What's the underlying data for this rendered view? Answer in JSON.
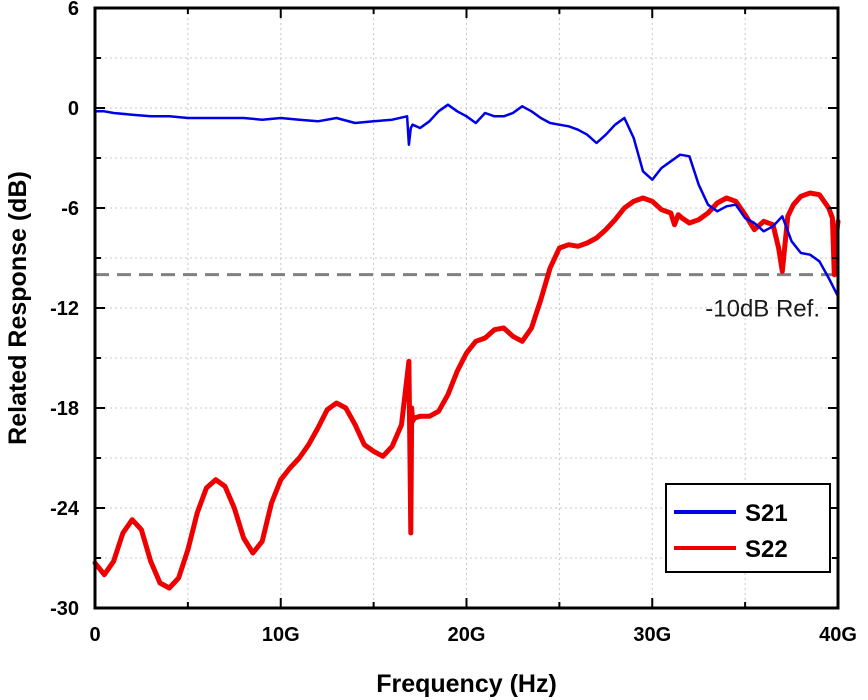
{
  "chart_data": {
    "type": "line",
    "title": "",
    "xlabel": "Frequency (Hz)",
    "ylabel": "Related Response (dB)",
    "xlim": [
      0,
      40
    ],
    "ylim": [
      -30,
      6
    ],
    "x_ticks": [
      {
        "value": 0,
        "label": "0"
      },
      {
        "value": 10,
        "label": "10G"
      },
      {
        "value": 20,
        "label": "20G"
      },
      {
        "value": 30,
        "label": "30G"
      },
      {
        "value": 40,
        "label": "40G"
      }
    ],
    "y_ticks": [
      {
        "value": 6,
        "label": "6"
      },
      {
        "value": 0,
        "label": "0"
      },
      {
        "value": -6,
        "label": "-6"
      },
      {
        "value": -12,
        "label": "-12"
      },
      {
        "value": -18,
        "label": "-18"
      },
      {
        "value": -24,
        "label": "-24"
      },
      {
        "value": -30,
        "label": "-30"
      }
    ],
    "grid": true,
    "reference_line": {
      "value": -10,
      "label": "-10dB Ref.",
      "color": "#808080"
    },
    "legend_position": "bottom-right",
    "series": [
      {
        "name": "S21",
        "color": "#0000e6",
        "x": [
          0,
          0.5,
          1,
          2,
          3,
          4,
          5,
          6,
          7,
          8,
          9,
          10,
          11,
          12,
          13,
          14,
          15,
          16,
          16.8,
          16.9,
          17.0,
          17.1,
          17.5,
          18,
          18.5,
          19,
          19.5,
          20,
          20.5,
          21,
          21.5,
          22,
          22.5,
          23,
          23.5,
          24,
          24.5,
          25,
          25.5,
          26,
          26.5,
          27,
          27.5,
          28,
          28.5,
          29,
          29.5,
          30,
          30.5,
          31,
          31.5,
          32,
          32.5,
          33,
          33.5,
          34,
          34.5,
          35,
          35.5,
          36,
          36.5,
          37,
          37.5,
          38,
          38.5,
          39,
          39.5,
          40
        ],
        "values": [
          -0.2,
          -0.2,
          -0.3,
          -0.4,
          -0.5,
          -0.5,
          -0.6,
          -0.6,
          -0.6,
          -0.6,
          -0.7,
          -0.6,
          -0.7,
          -0.8,
          -0.6,
          -0.9,
          -0.8,
          -0.7,
          -0.5,
          -2.2,
          -1.2,
          -1.0,
          -1.2,
          -0.8,
          -0.2,
          0.2,
          -0.2,
          -0.5,
          -0.9,
          -0.3,
          -0.5,
          -0.5,
          -0.3,
          0.1,
          -0.2,
          -0.6,
          -0.9,
          -1.0,
          -1.1,
          -1.3,
          -1.6,
          -2.1,
          -1.6,
          -1.0,
          -0.6,
          -1.8,
          -3.8,
          -4.3,
          -3.6,
          -3.2,
          -2.8,
          -2.9,
          -4.6,
          -5.8,
          -6.2,
          -5.9,
          -5.8,
          -6.6,
          -6.9,
          -7.4,
          -7.1,
          -6.5,
          -8.0,
          -8.7,
          -8.8,
          -9.2,
          -10.2,
          -11.3
        ]
      },
      {
        "name": "S22",
        "color": "#ee0000",
        "x": [
          0,
          0.5,
          1,
          1.5,
          2,
          2.5,
          3,
          3.5,
          4,
          4.5,
          5,
          5.5,
          6,
          6.5,
          7,
          7.5,
          8,
          8.5,
          9,
          9.5,
          10,
          10.5,
          11,
          11.5,
          12,
          12.5,
          13,
          13.5,
          14,
          14.5,
          15,
          15.5,
          16,
          16.5,
          16.9,
          17.0,
          17.05,
          17.1,
          17.2,
          17.5,
          18,
          18.5,
          19,
          19.5,
          20,
          20.5,
          21,
          21.5,
          22,
          22.5,
          23,
          23.5,
          24,
          24.5,
          25,
          25.5,
          26,
          26.5,
          27,
          27.5,
          28,
          28.5,
          29,
          29.5,
          30,
          30.5,
          31,
          31.2,
          31.4,
          31.6,
          32,
          32.5,
          33,
          33.5,
          34,
          34.5,
          35,
          35.5,
          36,
          36.5,
          36.8,
          37,
          37.3,
          37.6,
          38,
          38.5,
          39,
          39.5,
          39.7,
          39.8,
          39.9,
          40
        ],
        "values": [
          -27.3,
          -28.0,
          -27.2,
          -25.5,
          -24.7,
          -25.3,
          -27.2,
          -28.5,
          -28.8,
          -28.2,
          -26.5,
          -24.3,
          -22.8,
          -22.3,
          -22.7,
          -24.0,
          -25.8,
          -26.7,
          -26.0,
          -23.7,
          -22.3,
          -21.6,
          -21.0,
          -20.2,
          -19.2,
          -18.1,
          -17.7,
          -18.0,
          -19.0,
          -20.2,
          -20.6,
          -20.9,
          -20.3,
          -19.0,
          -15.2,
          -25.5,
          -18.0,
          -18.8,
          -18.6,
          -18.5,
          -18.5,
          -18.2,
          -17.2,
          -15.8,
          -14.7,
          -14.0,
          -13.8,
          -13.3,
          -13.2,
          -13.7,
          -14.0,
          -13.2,
          -11.5,
          -9.6,
          -8.4,
          -8.2,
          -8.3,
          -8.1,
          -7.8,
          -7.3,
          -6.7,
          -6.0,
          -5.6,
          -5.4,
          -5.6,
          -6.1,
          -6.3,
          -7.0,
          -6.4,
          -6.6,
          -6.9,
          -6.7,
          -6.3,
          -5.7,
          -5.4,
          -5.6,
          -6.4,
          -7.3,
          -6.8,
          -7.0,
          -8.4,
          -9.8,
          -6.5,
          -5.8,
          -5.3,
          -5.1,
          -5.2,
          -6.0,
          -6.6,
          -10.0,
          -7.8,
          -6.8
        ]
      }
    ]
  }
}
